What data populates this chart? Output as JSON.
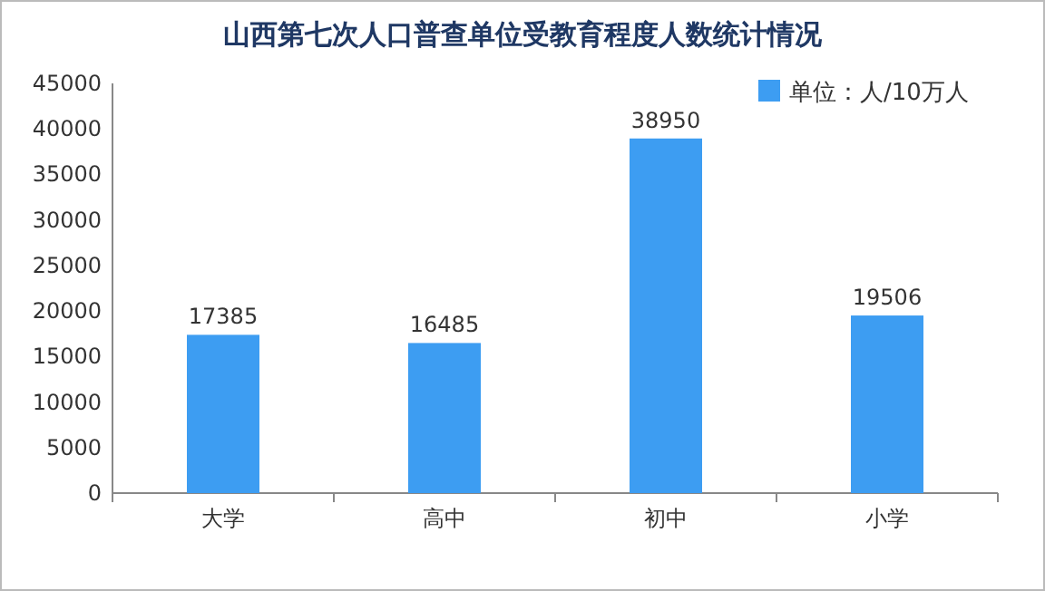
{
  "chart_data": {
    "type": "bar",
    "title": "山西第七次人口普查单位受教育程度人数统计情况",
    "categories": [
      "大学",
      "高中",
      "初中",
      "小学"
    ],
    "series": [
      {
        "name": "单位：人/10万人",
        "color": "#3d9df2",
        "values": [
          17385,
          16485,
          38950,
          19506
        ]
      }
    ],
    "ylim": [
      0,
      45000
    ],
    "yticks": [
      0,
      5000,
      10000,
      15000,
      20000,
      25000,
      30000,
      35000,
      40000,
      45000
    ],
    "data_labels": true,
    "legend": "top right",
    "grid": false
  }
}
